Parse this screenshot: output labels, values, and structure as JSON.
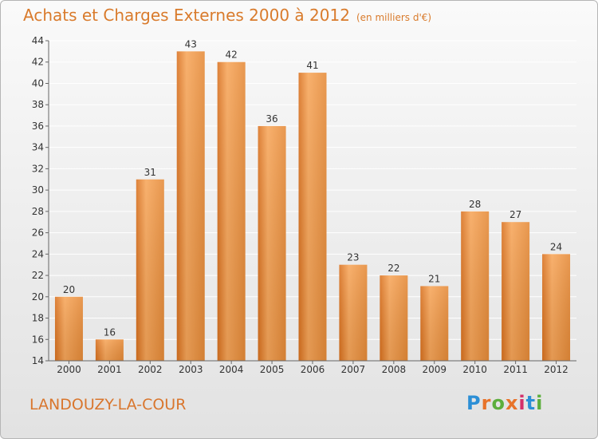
{
  "title": "Achats et Charges Externes 2000 à 2012",
  "subtitle": "(en milliers d'€)",
  "commune": "LANDOUZY-LA-COUR",
  "logo": {
    "text": "Proxiti",
    "letters": [
      "P",
      "r",
      "o",
      "x",
      "i",
      "t",
      "i"
    ],
    "colors": [
      "#2c8fd6",
      "#e8732a",
      "#5cae3c",
      "#e8732a",
      "#d32f6a",
      "#2c8fd6",
      "#5cae3c"
    ]
  },
  "colors": {
    "bar_light": "#f7a65a",
    "bar_dark": "#d9711f",
    "title": "#d97b2c",
    "grid": "#ffffff"
  },
  "chart_data": {
    "type": "bar",
    "categories": [
      "2000",
      "2001",
      "2002",
      "2003",
      "2004",
      "2005",
      "2006",
      "2007",
      "2008",
      "2009",
      "2010",
      "2011",
      "2012"
    ],
    "values": [
      20,
      16,
      31,
      43,
      42,
      36,
      41,
      23,
      22,
      21,
      28,
      27,
      24
    ],
    "title": "Achats et Charges Externes 2000 à 2012",
    "ylim": [
      14,
      44
    ],
    "yticks": [
      14,
      16,
      18,
      20,
      22,
      24,
      26,
      28,
      30,
      32,
      34,
      36,
      38,
      40,
      42,
      44
    ],
    "grid": true
  }
}
